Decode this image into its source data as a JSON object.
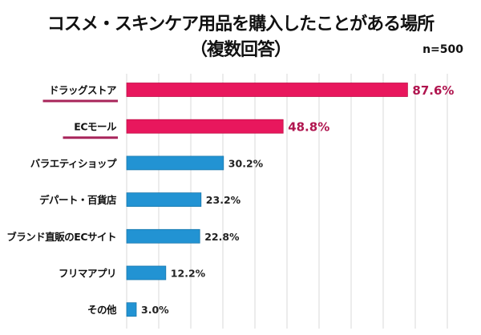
{
  "chart_data": {
    "type": "bar",
    "orientation": "horizontal",
    "title": "コスメ・スキンケア用品を購入したことがある場所",
    "subtitle": "（複数回答）",
    "note": "n=500",
    "categories": [
      "ドラッグストア",
      "ECモール",
      "バラエティショップ",
      "デパート・百貨店",
      "ブランド直販のECサイト",
      "フリマアプリ",
      "その他"
    ],
    "values": [
      87.6,
      48.8,
      30.2,
      23.2,
      22.8,
      12.2,
      3.0
    ],
    "data_labels": [
      "87.6%",
      "48.8%",
      "30.2%",
      "23.2%",
      "22.8%",
      "12.2%",
      "3.0%"
    ],
    "highlighted": [
      true,
      true,
      false,
      false,
      false,
      false,
      false
    ],
    "xlim": [
      0,
      100
    ],
    "grid": true,
    "colors": {
      "highlight": "#e8175d",
      "highlight_label": "#b0154f",
      "underline": "#a8245a",
      "normal": "#2293d3",
      "normal_label": "#222222",
      "grid": "#d9d9d9"
    }
  }
}
